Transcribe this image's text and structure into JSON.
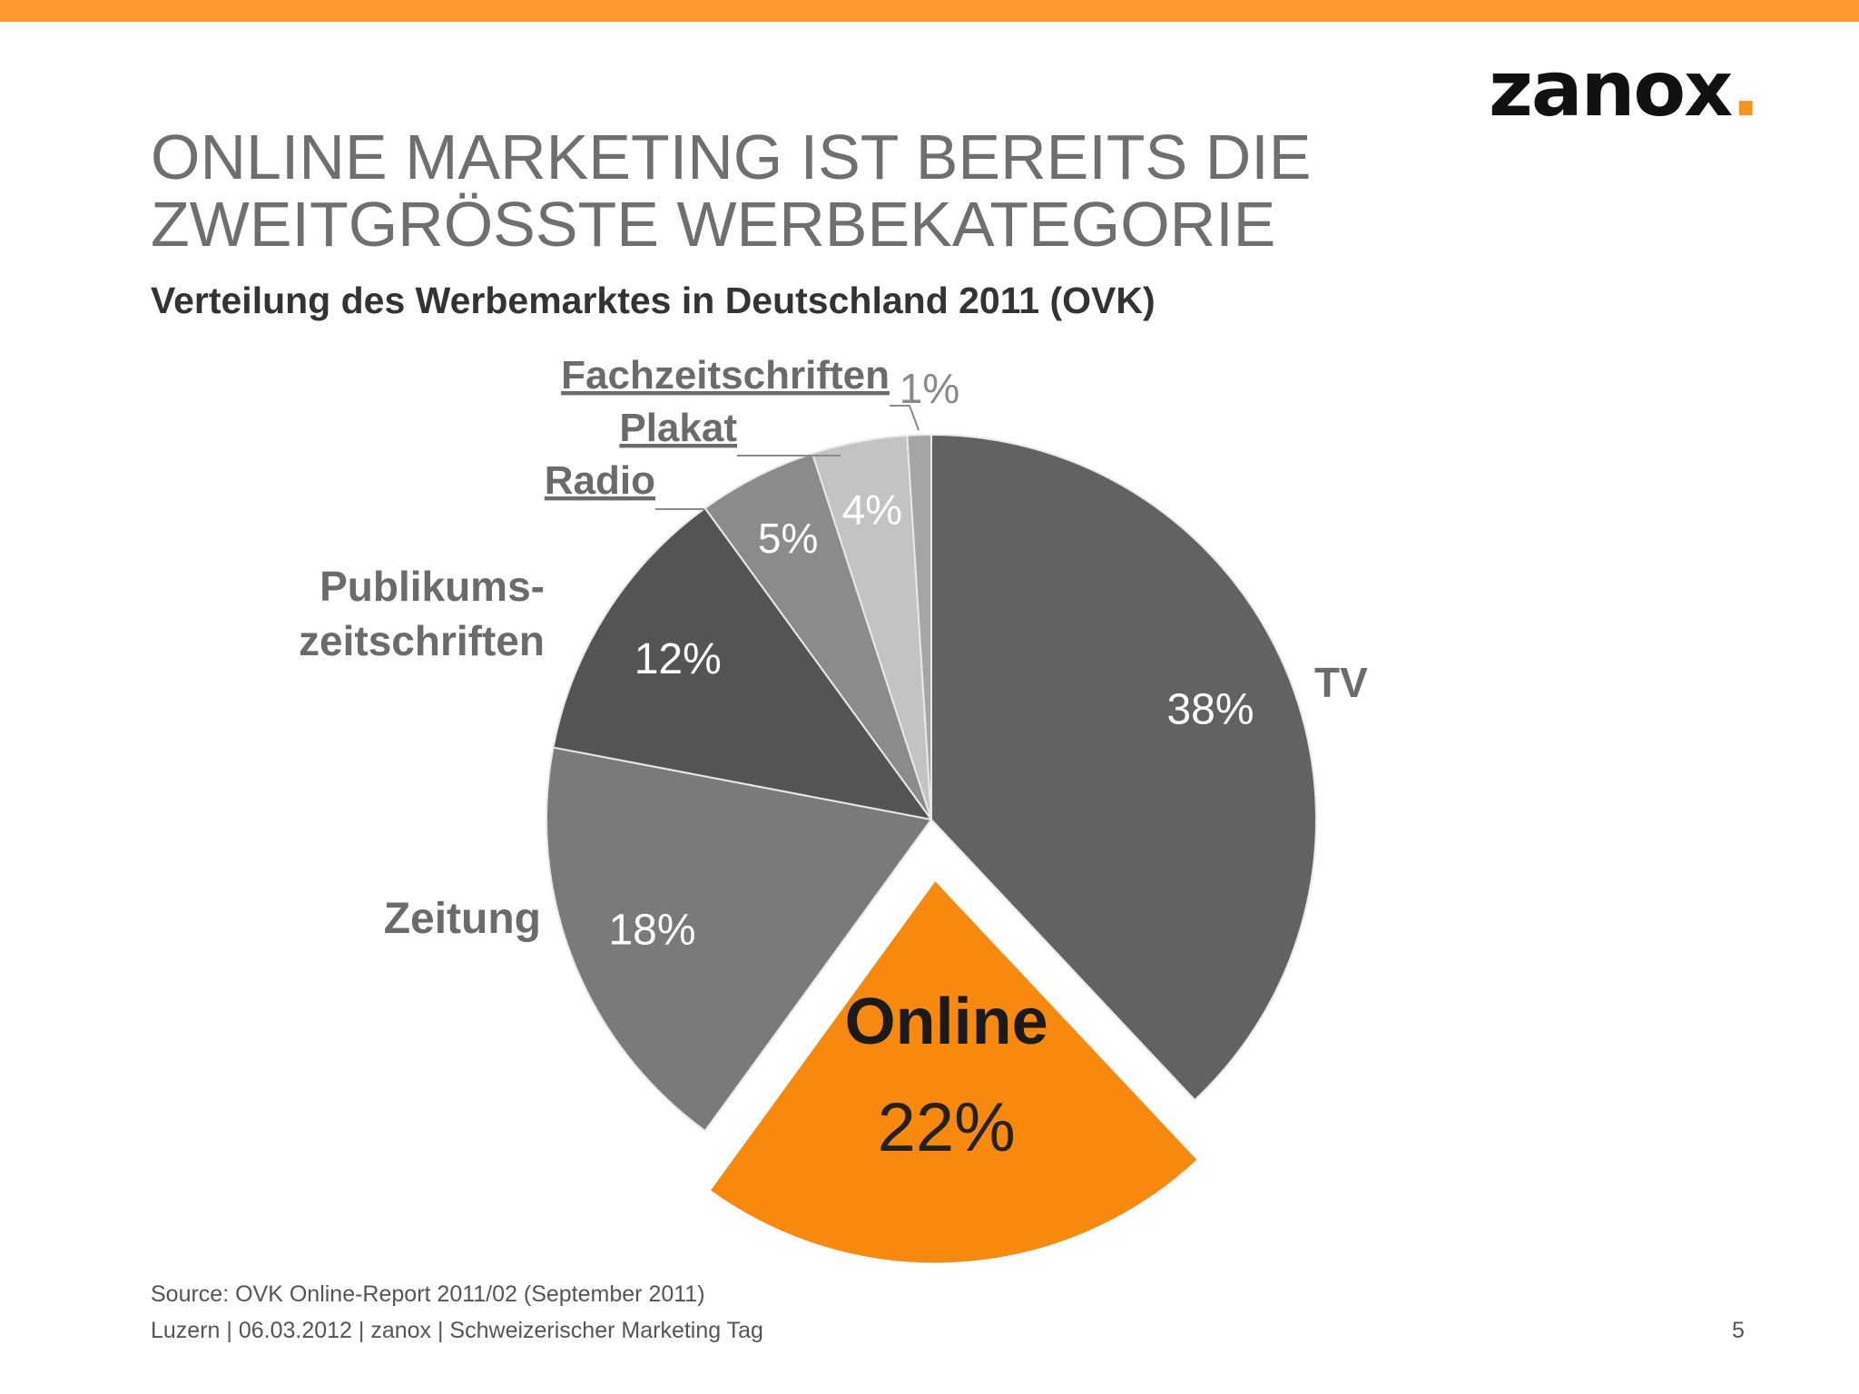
{
  "brand": {
    "logo_text": "zanox",
    "logo_dot": ".",
    "accent_color": "#f7931e",
    "bar_color": "#ff9a2e"
  },
  "slide": {
    "title_line1": "ONLINE MARKETING IST BEREITS DIE",
    "title_line2": "ZWEITGRÖSSTE WERBEKATEGORIE",
    "subtitle": "Verteilung des Werbemarktes in Deutschland 2011 (OVK)"
  },
  "chart_data": {
    "type": "pie",
    "start": "12 o'clock, clockwise",
    "exploded_slice": "Online",
    "slices": [
      {
        "label": "TV",
        "value": 38,
        "value_label": "38%",
        "color": "#636164"
      },
      {
        "label": "Online",
        "value": 22,
        "value_label": "22%",
        "color": "#f7890f"
      },
      {
        "label": "Zeitung",
        "value": 18,
        "value_label": "18%",
        "color": "#7b797c"
      },
      {
        "label": "Publikums-\nzeitschriften",
        "value": 12,
        "value_label": "12%",
        "color": "#555356"
      },
      {
        "label": "Radio",
        "value": 5,
        "value_label": "5%",
        "color": "#8c8a8d"
      },
      {
        "label": "Plakat",
        "value": 4,
        "value_label": "4%",
        "color": "#c3c2c4"
      },
      {
        "label": "Fachzeitschriften",
        "value": 1,
        "value_label": "1%",
        "color": "#a5a4a6"
      }
    ]
  },
  "footer": {
    "source": "Source: OVK Online-Report 2011/02 (September 2011)",
    "line": "Luzern | 06.03.2012 | zanox | Schweizerischer Marketing Tag",
    "page": "5"
  }
}
